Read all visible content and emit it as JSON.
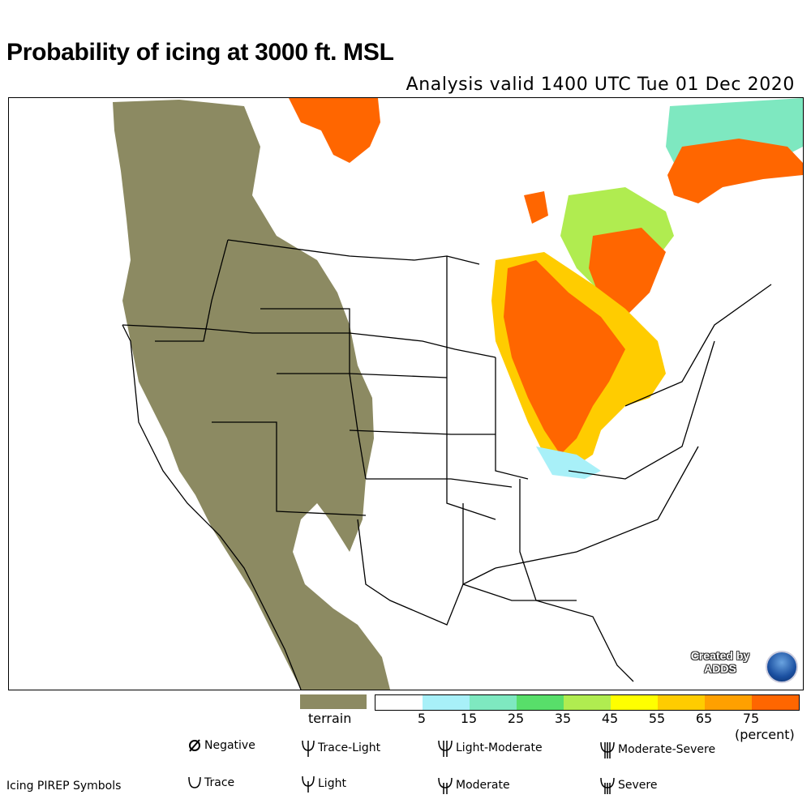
{
  "header": {
    "title": "Probability of icing at 3000 ft. MSL",
    "subtitle": "Analysis valid 1400 UTC Tue 01 Dec 2020"
  },
  "credit": {
    "text_line1": "Created by",
    "text_line2": "ADDS",
    "logo": "noaa-logo"
  },
  "colors": {
    "terrain": "#8c8a62",
    "water_ice": "#ffffff",
    "scale": [
      "#ffffff",
      "#a8f0f8",
      "#7ee8c0",
      "#58de6a",
      "#b0ec50",
      "#ffff00",
      "#ffcc00",
      "#ffa000",
      "#ff6600"
    ]
  },
  "legend": {
    "terrain_label": "terrain",
    "ticks": [
      "5",
      "15",
      "25",
      "35",
      "45",
      "55",
      "65",
      "75"
    ],
    "unit": "(percent)"
  },
  "pirep": {
    "title": "Icing PIREP Symbols",
    "symbols": [
      {
        "label": "Negative",
        "icon": "negative-icon"
      },
      {
        "label": "Trace-Light",
        "icon": "trace-light-icon"
      },
      {
        "label": "Light-Moderate",
        "icon": "light-moderate-icon"
      },
      {
        "label": "Moderate-Severe",
        "icon": "moderate-severe-icon"
      },
      {
        "label": "Trace",
        "icon": "trace-icon"
      },
      {
        "label": "Light",
        "icon": "light-icon"
      },
      {
        "label": "Moderate",
        "icon": "moderate-icon"
      },
      {
        "label": "Severe",
        "icon": "severe-icon"
      }
    ]
  }
}
